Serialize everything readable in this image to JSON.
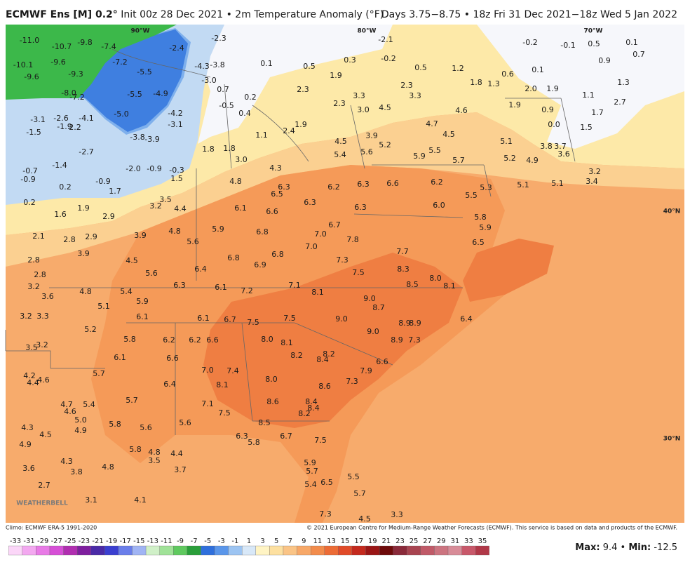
{
  "header": {
    "title_bold": "ECMWF Ens [M] 0.2°",
    "title_rest": "Init 00z 28 Dec 2021 • 2m Temperature Anomaly (°F)",
    "valid": "Days 3.75−8.75 • 18z Fri 31 Dec 2021−18z Wed 5 Jan 2022"
  },
  "map": {
    "lon_labels": [
      "90°W",
      "80°W",
      "70°W"
    ],
    "lat_labels": [
      "40°N",
      "30°N"
    ],
    "logo": "WEATHERBELL",
    "values": [
      "-11.0",
      "-9.8",
      "-10.7",
      "-7.4",
      "-10.1",
      "-9.6",
      "-7.2",
      "-9.3",
      "-9.6",
      "-5.5",
      "-8.0",
      "-7.2",
      "-5.5",
      "-4.9",
      "-2.3",
      "-2.4",
      "-4.3",
      "-3.8",
      "-3.0",
      "0.7",
      "-0.5",
      "0.2",
      "0.4",
      "-5.0",
      "-4.2",
      "-3.1",
      "-3.1",
      "-2.6",
      "-4.1",
      "-1.9",
      "2.2",
      "-1.5",
      "-3.8",
      "-3.9",
      "-2.7",
      "-1.4",
      "-2.0",
      "-0.9",
      "-0.3",
      "1.5",
      "-0.7",
      "-0.9",
      "0.2",
      "-0.9",
      "1.7",
      "0.2",
      "1.9",
      "1.6",
      "2.9",
      "3.5",
      "3.2",
      "4.4",
      "1.8",
      "1.8",
      "3.0",
      "1.1",
      "2.4",
      "1.9",
      "2.3",
      "0.1",
      "0.5",
      "0.3",
      "-2.1",
      "-0.2",
      "1.9",
      "3.3",
      "2.3",
      "3.0",
      "4.5",
      "2.3",
      "3.3",
      "0.5",
      "1.2",
      "1.8",
      "1.3",
      "0.6",
      "0.1",
      "2.0",
      "1.9",
      "-0.2",
      "-0.1",
      "0.5",
      "0.1",
      "0.7",
      "0.9",
      "1.3",
      "1.1",
      "2.7",
      "1.7",
      "1.5",
      "0.9",
      "0.0",
      "1.9",
      "4.7",
      "4.6",
      "4.5",
      "3.9",
      "5.2",
      "4.5",
      "5.4",
      "5.6",
      "5.5",
      "5.9",
      "5.7",
      "5.1",
      "5.2",
      "4.9",
      "3.8",
      "3.7",
      "3.6",
      "3.2",
      "3.4",
      "5.1",
      "5.1",
      "4.3",
      "4.8",
      "6.3",
      "6.5",
      "6.2",
      "6.3",
      "6.6",
      "6.2",
      "6.3",
      "5.5",
      "5.3",
      "6.1",
      "6.6",
      "6.3",
      "6.0",
      "5.8",
      "5.9",
      "6.5",
      "4.8",
      "5.9",
      "6.8",
      "7.0",
      "6.7",
      "7.8",
      "3.9",
      "5.6",
      "2.1",
      "2.8",
      "2.9",
      "3.9",
      "4.5",
      "6.8",
      "6.8",
      "6.9",
      "7.0",
      "7.3",
      "7.7",
      "6.4",
      "5.6",
      "2.8",
      "2.8",
      "8.3",
      "7.5",
      "8.0",
      "8.1",
      "8.5",
      "6.3",
      "6.1",
      "7.2",
      "7.1",
      "8.1",
      "3.2",
      "3.6",
      "4.8",
      "5.4",
      "5.9",
      "5.1",
      "9.0",
      "8.7",
      "3.2",
      "3.3",
      "6.1",
      "6.1",
      "6.7",
      "7.5",
      "7.5",
      "9.0",
      "9.0",
      "8.9",
      "8.9",
      "6.4",
      "5.2",
      "5.8",
      "6.2",
      "6.2",
      "6.6",
      "8.0",
      "8.1",
      "8.9",
      "7.3",
      "3.5",
      "3.2",
      "6.1",
      "6.6",
      "8.2",
      "8.2",
      "8.4",
      "6.6",
      "7.0",
      "7.4",
      "7.9",
      "5.7",
      "4.2",
      "4.6",
      "4.4",
      "6.4",
      "8.1",
      "8.0",
      "8.6",
      "7.3",
      "5.7",
      "7.1",
      "7.5",
      "8.6",
      "8.4",
      "8.4",
      "8.2",
      "4.7",
      "4.6",
      "5.4",
      "5.0",
      "5.8",
      "5.6",
      "5.6",
      "8.5",
      "4.3",
      "4.5",
      "4.9",
      "6.3",
      "5.8",
      "6.7",
      "7.5",
      "4.9",
      "5.8",
      "4.8",
      "4.4",
      "3.5",
      "4.3",
      "3.6",
      "3.8",
      "4.8",
      "3.7",
      "5.9",
      "5.7",
      "5.5",
      "5.4",
      "6.5",
      "2.7",
      "5.7",
      "3.1",
      "4.1",
      "7.3",
      "4.5",
      "3.3"
    ]
  },
  "footer": {
    "climo": "Climo: ECMWF ERA-5 1991-2020",
    "copyright": "© 2021 European Centre for Medium-Range Weather Forecasts (ECMWF). This service is based on data and products of the ECMWF."
  },
  "colorbar": {
    "ticks": [
      -33,
      -31,
      -29,
      -27,
      -25,
      -23,
      -21,
      -19,
      -17,
      -15,
      -13,
      -11,
      -9,
      -7,
      -5,
      -3,
      -1,
      1,
      3,
      5,
      7,
      9,
      11,
      13,
      15,
      17,
      19,
      21,
      23,
      25,
      27,
      29,
      31,
      33,
      35
    ],
    "colors": [
      "#fbd6f8",
      "#f3a8f0",
      "#e87ae6",
      "#d64fd6",
      "#b02eb0",
      "#7e1e9e",
      "#4a2aa6",
      "#3a3fd0",
      "#6a7eea",
      "#a0b4f4",
      "#d0f0c8",
      "#a0e298",
      "#5fc95f",
      "#2a9e3a",
      "#2f6fdc",
      "#5a96ea",
      "#9cc4f2",
      "#d8e8f8",
      "#fff4c4",
      "#fde0a0",
      "#fac486",
      "#f7a868",
      "#f28c4c",
      "#ec6c36",
      "#e04a28",
      "#c42a1e",
      "#9a1616",
      "#6e0a0a",
      "#8a2a3a",
      "#a84450",
      "#c05a68",
      "#cc7480",
      "#d88c98",
      "#c8586a",
      "#b03848"
    ]
  },
  "stats": {
    "max_label": "Max:",
    "max": "9.4",
    "separator": "•",
    "min_label": "Min:",
    "min": "-12.5"
  }
}
